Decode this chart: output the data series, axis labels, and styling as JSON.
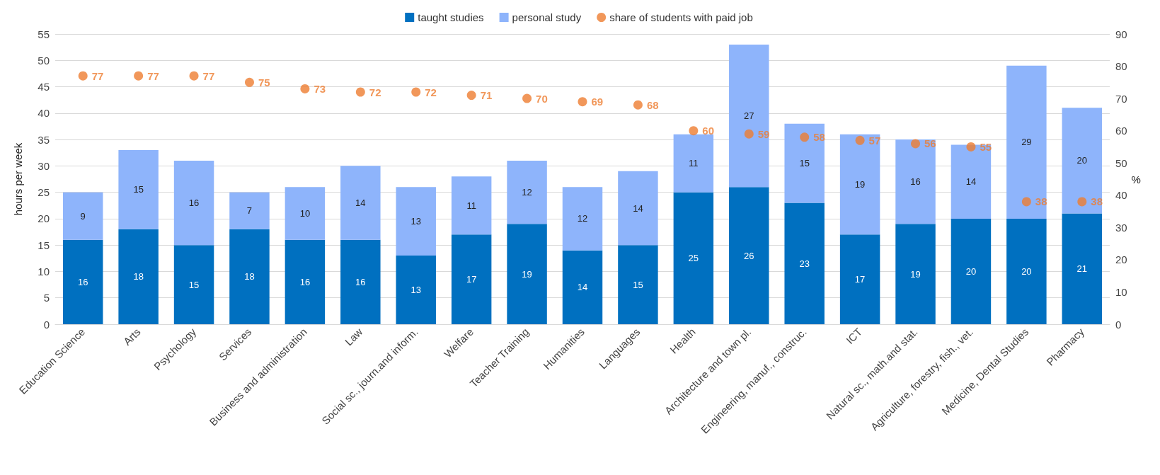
{
  "chart_data": {
    "type": "bar",
    "stacked": true,
    "categories": [
      "Education Science",
      "Arts",
      "Psychology",
      "Services",
      "Business and administration",
      "Law",
      "Social sc., journ.and inform.",
      "Welfare",
      "Teacher Training",
      "Humanities",
      "Languages",
      "Health",
      "Architecture and town pl.",
      "Engineering, manuf., construc.",
      "ICT",
      "Natural sc., math.and stat.",
      "Agriculture, forestry, fish., vet.",
      "Medicine, Dental Studies",
      "Pharmacy"
    ],
    "series": [
      {
        "name": "taught studies",
        "color": "#0070c0",
        "values": [
          16,
          18,
          15,
          18,
          16,
          16,
          13,
          17,
          19,
          14,
          15,
          25,
          26,
          23,
          17,
          19,
          20,
          20,
          21
        ]
      },
      {
        "name": "personal study",
        "color": "#8eb4fb",
        "values": [
          9,
          15,
          16,
          7,
          10,
          14,
          13,
          11,
          12,
          12,
          14,
          11,
          27,
          15,
          19,
          16,
          14,
          29,
          20
        ]
      },
      {
        "name": "share of students with paid job",
        "type": "scatter",
        "axis": "y2",
        "color": "#ed7d31",
        "x": [
          "Education Science",
          "Arts",
          "Psychology",
          "Services",
          "Business and administration",
          "Law",
          "Social sc., journ.and inform.",
          "Welfare",
          "Teacher Training",
          "Humanities",
          "Languages",
          "Health",
          "Architecture and town pl.",
          "Engineering, manuf., construc.",
          "ICT",
          "Natural sc., math.and stat.",
          "Agriculture, forestry, fish., vet.",
          "Medicine, Dental Studies",
          "Pharmacy"
        ],
        "values": [
          77,
          77,
          77,
          75,
          73,
          72,
          72,
          71,
          70,
          69,
          68,
          60,
          59,
          58,
          57,
          56,
          55,
          38,
          38
        ]
      }
    ],
    "ylabel": "hours per week",
    "y2label": "%",
    "ylim": [
      0,
      55
    ],
    "yticks": [
      0,
      5,
      10,
      15,
      20,
      25,
      30,
      35,
      40,
      45,
      50,
      55
    ],
    "y2lim": [
      0,
      90
    ],
    "y2ticks": [
      0,
      10,
      20,
      30,
      40,
      50,
      60,
      70,
      80,
      90
    ],
    "grid": "y",
    "legend": "top",
    "data_labels": true,
    "marker": "circle"
  }
}
